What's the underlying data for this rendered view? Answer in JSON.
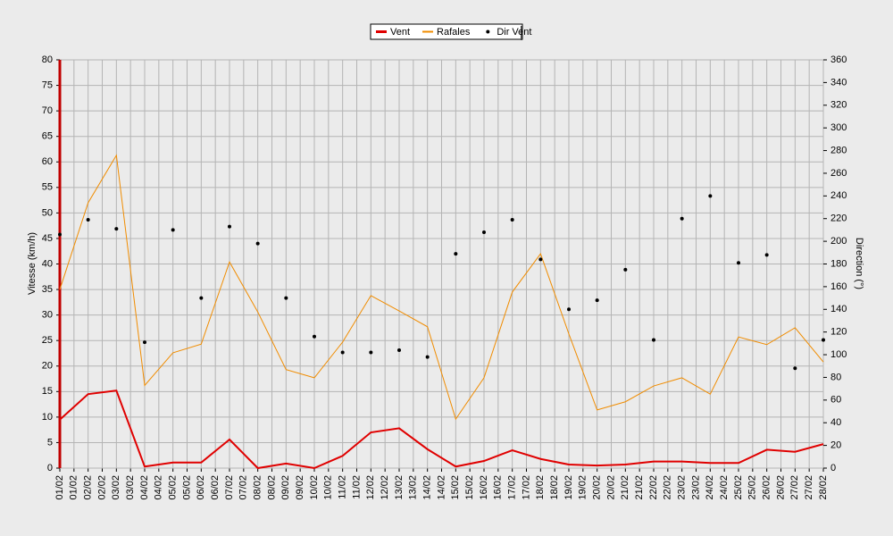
{
  "chart_data": {
    "type": "line",
    "y_label": "Vitesse (km/h)",
    "y2_label": "Direction (°)",
    "xticks": [
      "01/02",
      "01/02",
      "02/02",
      "02/02",
      "03/02",
      "03/02",
      "04/02",
      "04/02",
      "05/02",
      "05/02",
      "06/02",
      "06/02",
      "07/02",
      "07/02",
      "08/02",
      "08/02",
      "09/02",
      "09/02",
      "10/02",
      "10/02",
      "11/02",
      "11/02",
      "12/02",
      "12/02",
      "13/02",
      "13/02",
      "14/02",
      "14/02",
      "15/02",
      "15/02",
      "16/02",
      "16/02",
      "17/02",
      "17/02",
      "18/02",
      "18/02",
      "19/02",
      "19/02",
      "20/02",
      "20/02",
      "21/02",
      "21/02",
      "22/02",
      "22/02",
      "23/02",
      "23/02",
      "24/02",
      "24/02",
      "25/02",
      "25/02",
      "26/02",
      "26/02",
      "27/02",
      "27/02",
      "28/02"
    ],
    "ylim": [
      0,
      80
    ],
    "yticks": [
      0,
      5,
      10,
      15,
      20,
      25,
      30,
      35,
      40,
      45,
      50,
      55,
      60,
      65,
      70,
      75,
      80
    ],
    "y2lim": [
      0,
      360
    ],
    "y2ticks": [
      0,
      20,
      40,
      60,
      80,
      100,
      120,
      140,
      160,
      180,
      200,
      220,
      240,
      260,
      280,
      300,
      320,
      340,
      360
    ],
    "grid": true,
    "legend": "top",
    "series": [
      {
        "name": "Vent",
        "color": "#e00000",
        "kind": "line",
        "width": 2,
        "values": [
          9.5,
          14.5,
          15.2,
          0.3,
          1.1,
          1.1,
          5.6,
          0,
          0.9,
          0,
          2.4,
          7,
          7.8,
          3.7,
          0.3,
          1.4,
          3.5,
          1.8,
          0.7,
          0.5,
          0.7,
          1.3,
          1.3,
          1,
          1,
          3.6,
          3.2,
          4.7
        ]
      },
      {
        "name": "Rafales",
        "color": "#f08c00",
        "kind": "line",
        "width": 1,
        "values": [
          35,
          52,
          61.3,
          16.2,
          22.6,
          24.3,
          40.4,
          30.6,
          19.3,
          17.7,
          24.7,
          33.8,
          30.8,
          27.7,
          9.6,
          17.7,
          34.5,
          42,
          26.3,
          11.4,
          13,
          16.1,
          17.7,
          14.5,
          25.7,
          24.2,
          27.5,
          20.8
        ]
      },
      {
        "name": "Dir Vent",
        "color": "#000000",
        "kind": "dots",
        "axis": "y2",
        "values": [
          206,
          219,
          211,
          111,
          210,
          150,
          213,
          198,
          150,
          116,
          102,
          102,
          104,
          98,
          189,
          208,
          219,
          184,
          140,
          148,
          175,
          113,
          220,
          240,
          181,
          188,
          88,
          113
        ]
      }
    ]
  }
}
